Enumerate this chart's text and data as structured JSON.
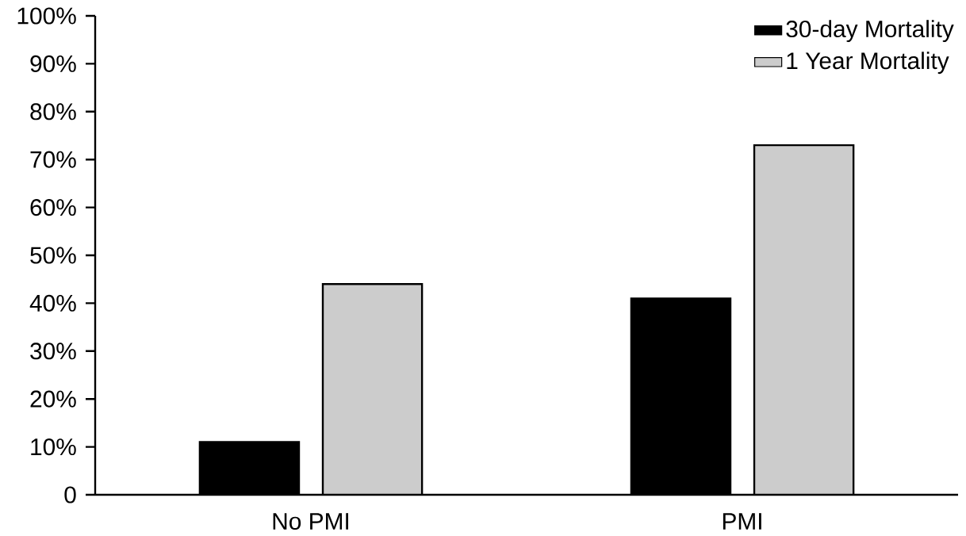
{
  "chart_data": {
    "type": "bar",
    "categories": [
      "No PMI",
      "PMI"
    ],
    "series": [
      {
        "name": "30-day Mortality",
        "color": "#000000",
        "values": [
          11,
          41
        ]
      },
      {
        "name": "1 Year Mortality",
        "color": "#cccccc",
        "values": [
          44,
          73
        ]
      }
    ],
    "ylim": [
      0,
      100
    ],
    "yticks": [
      {
        "value": 0,
        "label": "0"
      },
      {
        "value": 10,
        "label": "10%"
      },
      {
        "value": 20,
        "label": "20%"
      },
      {
        "value": 30,
        "label": "30%"
      },
      {
        "value": 40,
        "label": "40%"
      },
      {
        "value": 50,
        "label": "50%"
      },
      {
        "value": 60,
        "label": "60%"
      },
      {
        "value": 70,
        "label": "70%"
      },
      {
        "value": 80,
        "label": "80%"
      },
      {
        "value": 90,
        "label": "90%"
      },
      {
        "value": 100,
        "label": "100%"
      }
    ],
    "grid": false,
    "legend": "top right"
  }
}
